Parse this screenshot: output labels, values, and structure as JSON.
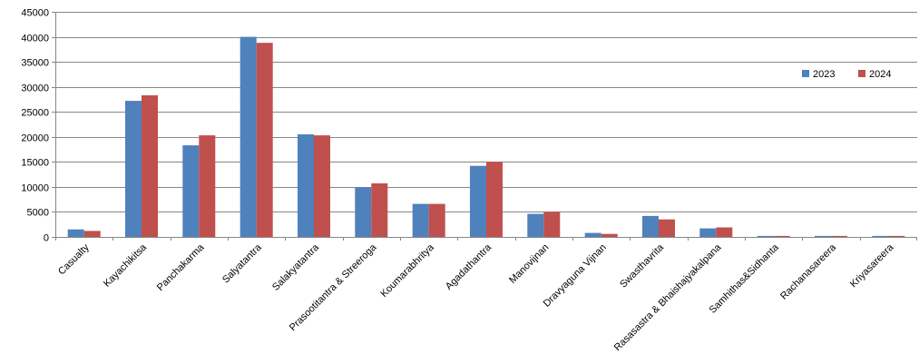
{
  "chart_data": {
    "type": "bar",
    "categories": [
      "Casualty",
      "Kayachikitsa",
      "Panchakarma",
      "Salyatantra",
      "Salakyatantra",
      "Prasootitantra & Streeroga",
      "Koumarabhritya",
      "Agadathantra",
      "Manovijnan",
      "Dravyaguna Vijnan",
      "Swasthavrita",
      "Rasasastra & Bhaishajyakalpana",
      "Samhithas&Sidhanta",
      "Rachanasareera",
      "Kriyasareera"
    ],
    "series": [
      {
        "name": "2023",
        "color": "#4F81BD",
        "values": [
          1500,
          27200,
          18300,
          40000,
          20500,
          9900,
          6600,
          14200,
          4600,
          800,
          4200,
          1700,
          200,
          200,
          200
        ]
      },
      {
        "name": "2024",
        "color": "#C0504D",
        "values": [
          1200,
          28300,
          20300,
          38800,
          20300,
          10700,
          6600,
          15000,
          5000,
          600,
          3500,
          1900,
          200,
          200,
          200
        ]
      }
    ],
    "ylim": [
      0,
      45000
    ],
    "yticks": [
      0,
      5000,
      10000,
      15000,
      20000,
      25000,
      30000,
      35000,
      40000,
      45000
    ],
    "grid": true,
    "legend": "right"
  }
}
